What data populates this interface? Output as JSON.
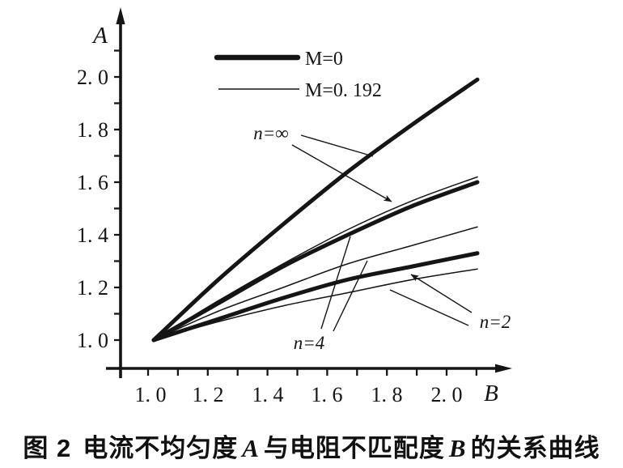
{
  "page": {
    "background": "#ffffff",
    "ink": "#151515"
  },
  "chart_data": {
    "type": "line",
    "title": "",
    "xlabel": "B",
    "ylabel": "A",
    "xlim": [
      1.0,
      2.1
    ],
    "ylim": [
      1.0,
      2.15
    ],
    "grid": false,
    "minor_tick_step": 0.1,
    "x": [
      1.0,
      1.2,
      1.4,
      1.6,
      1.8,
      2.0
    ],
    "x_tick_values": [
      1.0,
      1.2,
      1.4,
      1.6,
      1.8,
      2.0
    ],
    "x_tick_labels": [
      "1. 0",
      "1. 2",
      "1. 4",
      "1. 6",
      "1. 8",
      "2. 0"
    ],
    "y_tick_values": [
      1.0,
      1.2,
      1.4,
      1.6,
      1.8,
      2.0
    ],
    "y_tick_labels": [
      "1. 0",
      "1. 2",
      "1. 4",
      "1. 6",
      "1. 8",
      "2. 0"
    ],
    "legend": {
      "position": "top-inside",
      "entries": [
        {
          "label": "M=0",
          "style": "thick"
        },
        {
          "label": "M=0. 192",
          "style": "thin"
        }
      ]
    },
    "series": [
      {
        "name": "n=∞, M=0",
        "n": "∞",
        "M": 0,
        "style": "thick",
        "values": [
          1.0,
          1.23,
          1.44,
          1.64,
          1.82,
          1.99
        ]
      },
      {
        "name": "n=∞, M=0.192",
        "n": "∞",
        "M": 0.192,
        "style": "thin",
        "values": [
          1.0,
          1.15,
          1.29,
          1.42,
          1.53,
          1.62
        ]
      },
      {
        "name": "n=4, M=0",
        "n": "4",
        "M": 0,
        "style": "thick",
        "values": [
          1.0,
          1.14,
          1.28,
          1.4,
          1.51,
          1.6
        ]
      },
      {
        "name": "n=4, M=0.192",
        "n": "4",
        "M": 0.192,
        "style": "thin",
        "values": [
          1.0,
          1.11,
          1.2,
          1.29,
          1.36,
          1.43
        ]
      },
      {
        "name": "n=2, M=0",
        "n": "2",
        "M": 0,
        "style": "thick",
        "values": [
          1.0,
          1.08,
          1.16,
          1.23,
          1.28,
          1.33
        ]
      },
      {
        "name": "n=2, M=0.192",
        "n": "2",
        "M": 0.192,
        "style": "thin",
        "values": [
          1.0,
          1.07,
          1.13,
          1.18,
          1.23,
          1.27
        ]
      }
    ],
    "annotations": [
      {
        "label": "n=∞",
        "targets": [
          "n=∞, M=0",
          "n=∞, M=0.192"
        ]
      },
      {
        "label": "n=4",
        "targets": [
          "n=4, M=0",
          "n=4, M=0.192"
        ]
      },
      {
        "label": "n=2",
        "targets": [
          "n=2, M=0",
          "n=2, M=0.192"
        ]
      }
    ]
  },
  "caption": {
    "figure_label": "图 2",
    "text_before_a": "电流不均匀度",
    "var_a": "A",
    "text_between": "与电阻不匹配度",
    "var_b": "B",
    "text_after": "的关系曲线"
  }
}
